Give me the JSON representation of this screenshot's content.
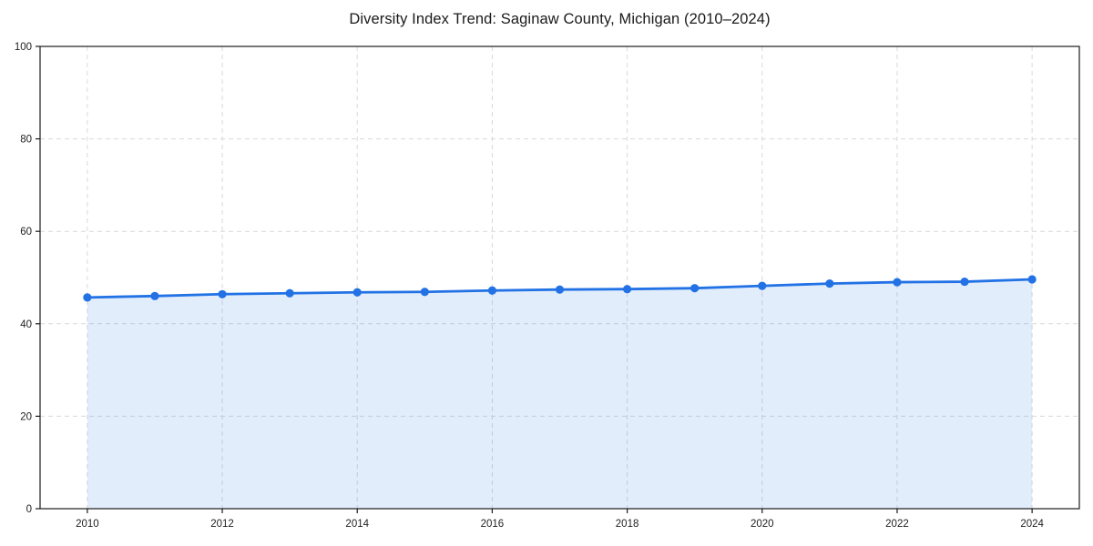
{
  "chart_data": {
    "type": "area",
    "title": "Diversity Index Trend: Saginaw County, Michigan (2010–2024)",
    "series_name": "Diversity Index",
    "x": [
      2010,
      2011,
      2012,
      2013,
      2014,
      2015,
      2016,
      2017,
      2018,
      2019,
      2020,
      2021,
      2022,
      2023,
      2024
    ],
    "values": [
      45.7,
      46.0,
      46.4,
      46.6,
      46.8,
      46.9,
      47.2,
      47.4,
      47.5,
      47.7,
      48.2,
      48.7,
      49.0,
      49.1,
      49.6
    ],
    "xlabel": "",
    "ylabel": "",
    "xlim": [
      2009.3,
      2024.7
    ],
    "ylim": [
      0,
      100
    ],
    "xticks": [
      2010,
      2012,
      2014,
      2016,
      2018,
      2020,
      2022,
      2024
    ],
    "yticks": [
      0,
      20,
      40,
      60,
      80,
      100
    ],
    "grid": true,
    "grid_style": "dashed",
    "legend_position": "none",
    "colors": {
      "line": "#2272e5",
      "marker": "#2272e5",
      "fill": "rgba(34,114,229,0.13)",
      "grid": "#d9d9d9",
      "axis": "#1a1a1a",
      "tick_text": "#1f1f1f",
      "background": "#ffffff"
    }
  }
}
